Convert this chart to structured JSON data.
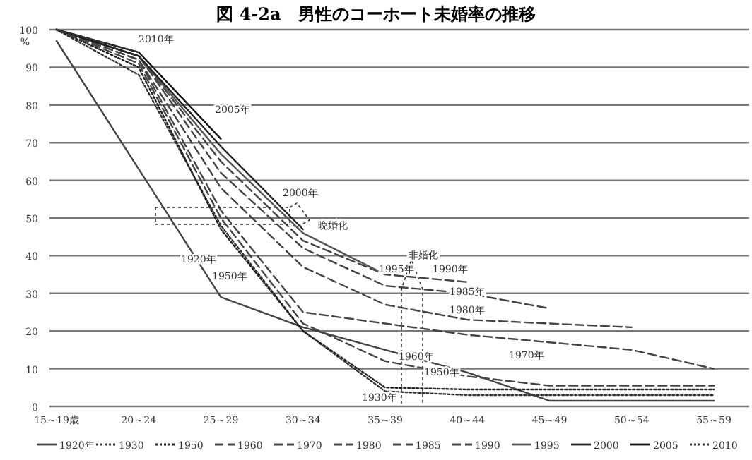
{
  "chart_data": {
    "type": "line",
    "title": "図 4-2a　男性のコーホート未婚率の推移",
    "ylabel": "%",
    "categories": [
      "15～19歳",
      "20～24",
      "25～29",
      "30～34",
      "35～39",
      "40～44",
      "45～49",
      "50～54",
      "55～59"
    ],
    "ylim": [
      0,
      100
    ],
    "yticks": [
      0,
      10,
      20,
      30,
      40,
      50,
      60,
      70,
      80,
      90,
      100
    ],
    "grid": "y",
    "legend": "bottom",
    "series": [
      {
        "name": "1920年",
        "color": "#444444",
        "line_style": "solid",
        "values": [
          97,
          63,
          29,
          21,
          15,
          9,
          1.5,
          1.5,
          1.5
        ]
      },
      {
        "name": "1930",
        "color": "#333333",
        "line_style": "dotted",
        "values": [
          100,
          88,
          48,
          20,
          4,
          3,
          3,
          3,
          3
        ]
      },
      {
        "name": "1950",
        "color": "#222222",
        "line_style": "dotted",
        "values": [
          100,
          90,
          47,
          20,
          5,
          4.5,
          4.5,
          4.5,
          4.5
        ]
      },
      {
        "name": "1960",
        "color": "#444444",
        "line_style": "dashed",
        "values": [
          100,
          91,
          50,
          22,
          12,
          8,
          5.5,
          5.5,
          5.5
        ]
      },
      {
        "name": "1970",
        "color": "#444444",
        "line_style": "dashed",
        "values": [
          100,
          92,
          52,
          25,
          22,
          19,
          17,
          15,
          10
        ]
      },
      {
        "name": "1980",
        "color": "#444444",
        "line_style": "dashed",
        "values": [
          100,
          92,
          58,
          37,
          27,
          23,
          22,
          21,
          null
        ]
      },
      {
        "name": "1985",
        "color": "#444444",
        "line_style": "dashed",
        "values": [
          100,
          93,
          62,
          42,
          32,
          30,
          26,
          null,
          null
        ]
      },
      {
        "name": "1990",
        "color": "#444444",
        "line_style": "dashed",
        "values": [
          100,
          93,
          65,
          44,
          35,
          33,
          null,
          null,
          null
        ]
      },
      {
        "name": "1995",
        "color": "#555555",
        "line_style": "solid",
        "values": [
          100,
          93,
          67,
          46,
          35,
          null,
          null,
          null,
          null
        ]
      },
      {
        "name": "2000",
        "color": "#222222",
        "line_style": "solid",
        "values": [
          100,
          93,
          69,
          47,
          null,
          null,
          null,
          null,
          null
        ]
      },
      {
        "name": "2005",
        "color": "#111111",
        "line_style": "solid",
        "values": [
          100,
          94,
          71,
          null,
          null,
          null,
          null,
          null,
          null
        ]
      },
      {
        "name": "2010",
        "color": "#333333",
        "line_style": "dotted",
        "values": [
          100,
          94,
          null,
          null,
          null,
          null,
          null,
          null,
          null
        ]
      }
    ],
    "annotations": [
      "2010年",
      "2005年",
      "2000年",
      "晩婚化",
      "1920年",
      "1950年",
      "非婚化",
      "1995年",
      "1990年",
      "1985年",
      "1980年",
      "1970年",
      "1960年",
      "1950年",
      "1930年"
    ]
  }
}
